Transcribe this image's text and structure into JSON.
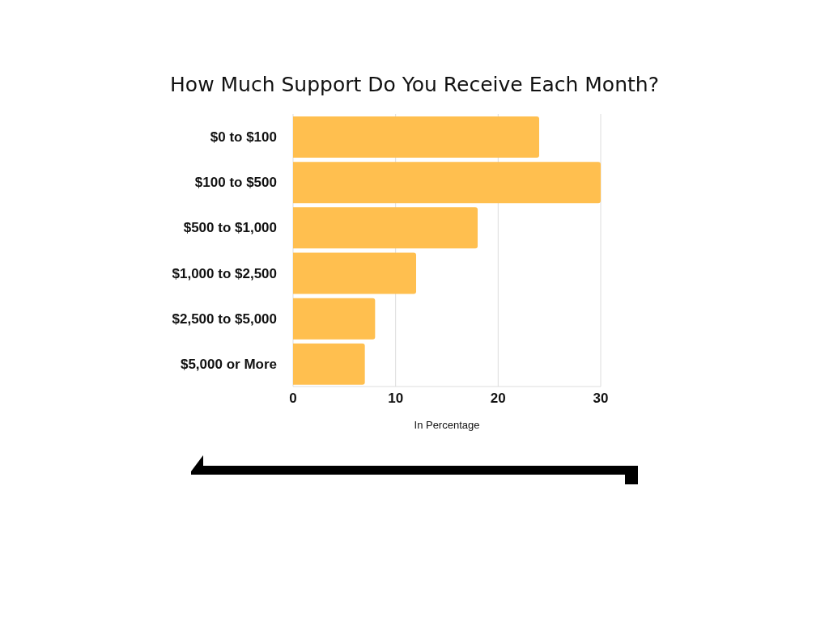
{
  "chart_data": {
    "type": "bar",
    "orientation": "horizontal",
    "title": "How Much Support Do You Receive Each Month?",
    "xlabel": "In Percentage",
    "categories": [
      "$0 to $100",
      "$100 to $500",
      "$500 to $1,000",
      "$1,000 to $2,500",
      "$2,500 to $5,000",
      "$5,000 or More"
    ],
    "values": [
      24,
      30,
      18,
      12,
      8,
      7
    ],
    "color": "#ffbf4f",
    "xlim": [
      0,
      30
    ],
    "xticks": [
      0,
      10,
      20,
      30
    ],
    "grid": "x"
  }
}
